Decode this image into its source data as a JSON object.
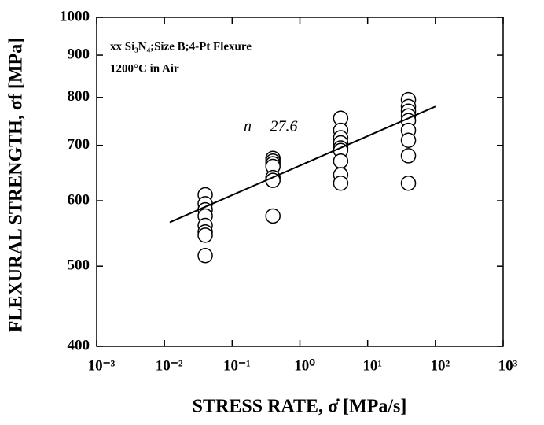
{
  "chart_data": {
    "type": "scatter",
    "annotations": [
      "xx Si₃N₄;Size B;4-Pt Flexure",
      "1200°C in Air",
      "n = 27.6"
    ],
    "xlabel": "STRESS  RATE, σ̇ [MPa/s]",
    "ylabel": "FLEXURAL  STRENGTH, σf [MPa]",
    "xscale": "log",
    "yscale": "log",
    "xlim": [
      0.001,
      1000
    ],
    "ylim": [
      400,
      1000
    ],
    "xticks": [
      {
        "value": 0.001,
        "label": "10⁻³"
      },
      {
        "value": 0.01,
        "label": "10⁻²"
      },
      {
        "value": 0.1,
        "label": "10⁻¹"
      },
      {
        "value": 1,
        "label": "10⁰"
      },
      {
        "value": 10,
        "label": "10¹"
      },
      {
        "value": 100,
        "label": "10²"
      },
      {
        "value": 1000,
        "label": "10³"
      }
    ],
    "yticks": [
      400,
      500,
      600,
      700,
      800,
      900,
      1000
    ],
    "series": [
      {
        "color": "#000000",
        "x": [
          0.04,
          0.04,
          0.04,
          0.04,
          0.04,
          0.04,
          0.04,
          0.04,
          0.4,
          0.4,
          0.4,
          0.4,
          0.4,
          0.4,
          0.4,
          4,
          4,
          4,
          4,
          4,
          4,
          4,
          4,
          4,
          40,
          40,
          40,
          40,
          40,
          40,
          40,
          40,
          40
        ],
        "values": [
          610,
          595,
          585,
          575,
          560,
          550,
          545,
          515,
          675,
          670,
          665,
          660,
          640,
          635,
          575,
          755,
          730,
          715,
          705,
          695,
          690,
          670,
          645,
          630,
          795,
          780,
          770,
          760,
          750,
          730,
          710,
          680,
          630
        ]
      },
      {
        "type": "line",
        "color": "#000000",
        "x": [
          0.012,
          100
        ],
        "values": [
          565,
          780
        ]
      }
    ]
  }
}
